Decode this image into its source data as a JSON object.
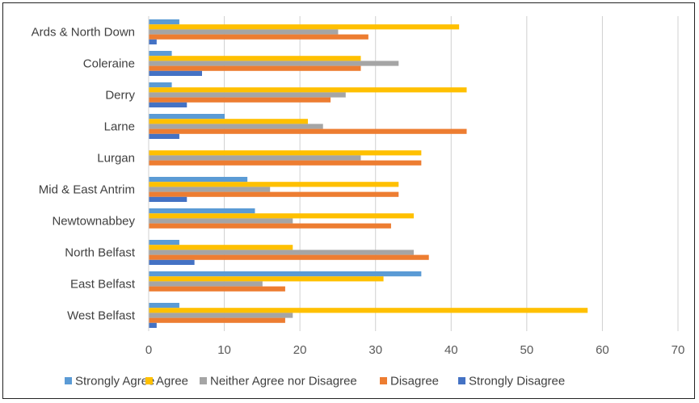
{
  "chart_data": {
    "type": "bar",
    "orientation": "horizontal",
    "title": "",
    "xlabel": "",
    "ylabel": "",
    "xlim": [
      0,
      70
    ],
    "x_ticks": [
      "0",
      "10",
      "20",
      "30",
      "40",
      "50",
      "60",
      "70"
    ],
    "grid": true,
    "legend_position": "bottom",
    "categories": [
      "Ards & North Down",
      "Coleraine",
      "Derry",
      "Larne",
      "Lurgan",
      "Mid & East Antrim",
      "Newtownabbey",
      "North Belfast",
      "East Belfast",
      "West Belfast"
    ],
    "series": [
      {
        "name": "Strongly Agree",
        "color": "#5B9BD5",
        "values": [
          4,
          3,
          3,
          10,
          0,
          13,
          14,
          4,
          36,
          4
        ]
      },
      {
        "name": "Agree",
        "color": "#FFC000",
        "values": [
          41,
          28,
          42,
          21,
          36,
          33,
          35,
          19,
          31,
          58
        ]
      },
      {
        "name": "Neither Agree nor Disagree",
        "color": "#A5A5A5",
        "values": [
          25,
          33,
          26,
          23,
          28,
          16,
          19,
          35,
          15,
          19
        ]
      },
      {
        "name": "Disagree",
        "color": "#ED7D31",
        "values": [
          29,
          28,
          24,
          42,
          36,
          33,
          32,
          37,
          18,
          18
        ]
      },
      {
        "name": "Strongly Disagree",
        "color": "#4472C4",
        "values": [
          1,
          7,
          5,
          4,
          0,
          5,
          0,
          6,
          0,
          1
        ]
      }
    ]
  }
}
